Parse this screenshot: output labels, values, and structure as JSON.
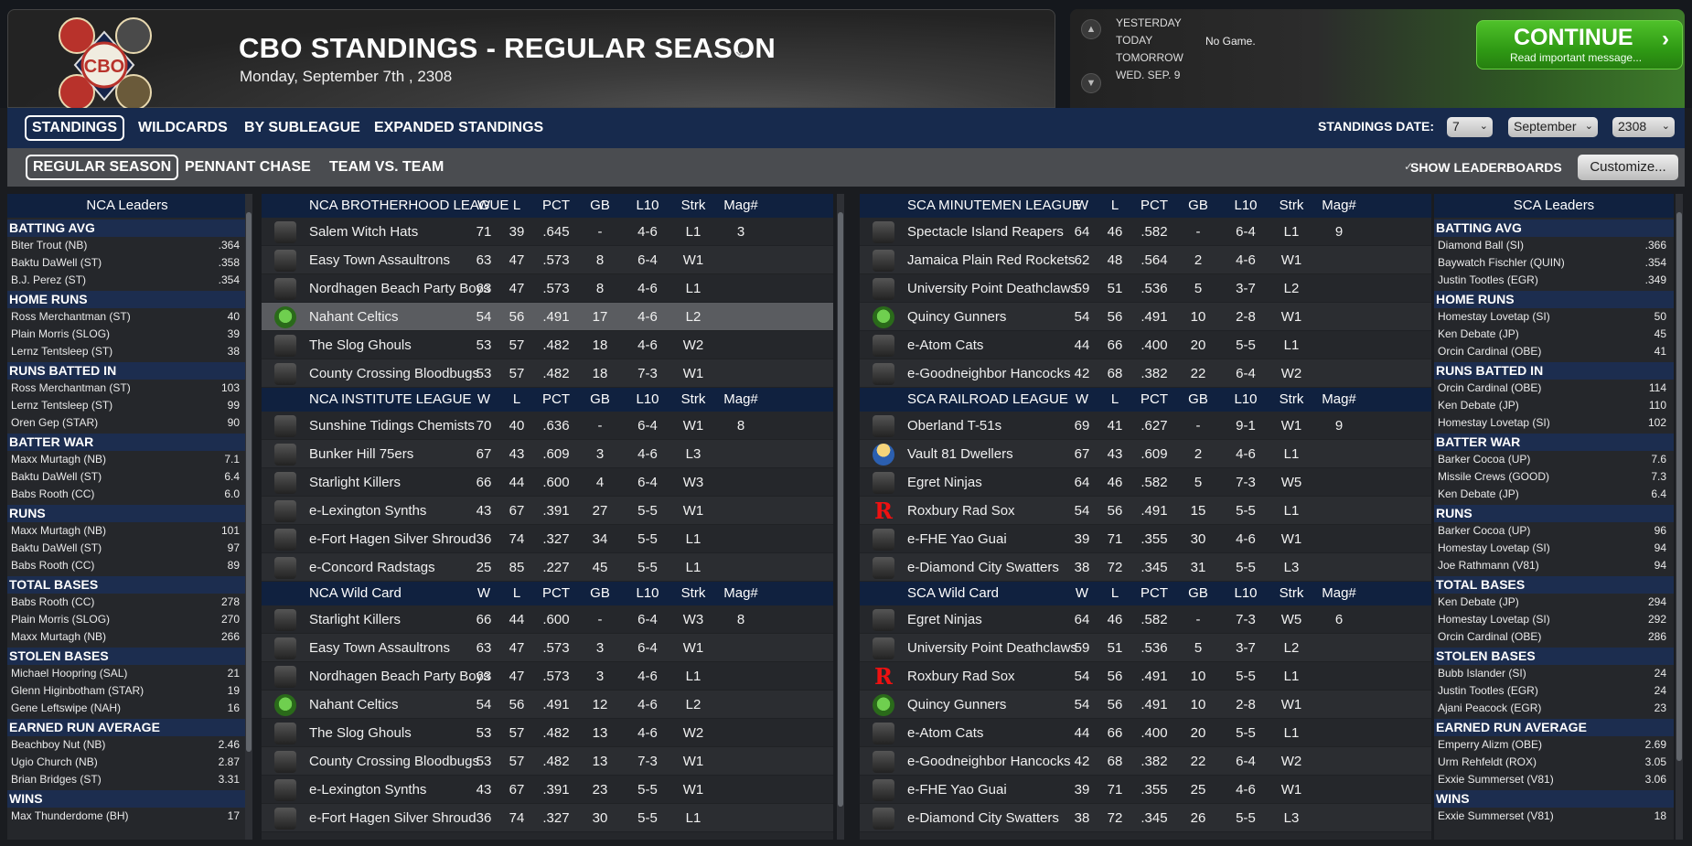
{
  "header": {
    "title": "CBO STANDINGS - REGULAR SEASON",
    "date": "Monday, September 7th , 2308",
    "logo_text": "CBO",
    "days": [
      "YESTERDAY",
      "TODAY",
      "TOMORROW",
      "WED. SEP. 9"
    ],
    "no_game": "No Game.",
    "continue_label": "CONTINUE",
    "continue_sub": "Read important message..."
  },
  "tabs1": [
    "STANDINGS",
    "WILDCARDS",
    "BY SUBLEAGUE",
    "EXPANDED STANDINGS"
  ],
  "tabs2": [
    "REGULAR SEASON",
    "PENNANT CHASE",
    "TEAM VS. TEAM"
  ],
  "standings_date": {
    "label": "STANDINGS DATE:",
    "day": "7",
    "month": "September",
    "year": "2308"
  },
  "show_leaderboards": "SHOW LEADERBOARDS",
  "customize": "Customize...",
  "columns": [
    "W",
    "L",
    "PCT",
    "GB",
    "L10",
    "Strk",
    "Mag#"
  ],
  "nca_leaders": {
    "title": "NCA Leaders",
    "categories": [
      {
        "name": "BATTING AVG",
        "rows": [
          [
            "Biter Trout (NB)",
            ".364"
          ],
          [
            "Baktu DaWell (ST)",
            ".358"
          ],
          [
            "B.J. Perez (ST)",
            ".354"
          ]
        ]
      },
      {
        "name": "HOME RUNS",
        "rows": [
          [
            "Ross Merchantman (ST)",
            "40"
          ],
          [
            "Plain Morris (SLOG)",
            "39"
          ],
          [
            "Lernz Tentsleep (ST)",
            "38"
          ]
        ]
      },
      {
        "name": "RUNS BATTED IN",
        "rows": [
          [
            "Ross Merchantman (ST)",
            "103"
          ],
          [
            "Lernz Tentsleep (ST)",
            "99"
          ],
          [
            "Oren Gep (STAR)",
            "90"
          ]
        ]
      },
      {
        "name": "BATTER WAR",
        "rows": [
          [
            "Maxx Murtagh (NB)",
            "7.1"
          ],
          [
            "Baktu DaWell (ST)",
            "6.4"
          ],
          [
            "Babs Rooth (CC)",
            "6.0"
          ]
        ]
      },
      {
        "name": "RUNS",
        "rows": [
          [
            "Maxx Murtagh (NB)",
            "101"
          ],
          [
            "Baktu DaWell (ST)",
            "97"
          ],
          [
            "Babs Rooth (CC)",
            "89"
          ]
        ]
      },
      {
        "name": "TOTAL BASES",
        "rows": [
          [
            "Babs Rooth (CC)",
            "278"
          ],
          [
            "Plain Morris (SLOG)",
            "270"
          ],
          [
            "Maxx Murtagh (NB)",
            "266"
          ]
        ]
      },
      {
        "name": "STOLEN BASES",
        "rows": [
          [
            "Michael Hoopring (SAL)",
            "21"
          ],
          [
            "Glenn Higinbotham (STAR)",
            "19"
          ],
          [
            "Gene Leftswipe (NAH)",
            "16"
          ]
        ]
      },
      {
        "name": "EARNED RUN AVERAGE",
        "rows": [
          [
            "Beachboy Nut (NB)",
            "2.46"
          ],
          [
            "Ugio Church (NB)",
            "2.87"
          ],
          [
            "Brian Bridges (ST)",
            "3.31"
          ]
        ]
      },
      {
        "name": "WINS",
        "rows": [
          [
            "Max Thunderdome (BH)",
            "17"
          ]
        ]
      }
    ]
  },
  "sca_leaders": {
    "title": "SCA Leaders",
    "categories": [
      {
        "name": "BATTING AVG",
        "rows": [
          [
            "Diamond Ball (SI)",
            ".366"
          ],
          [
            "Baywatch Fischler (QUIN)",
            ".354"
          ],
          [
            "Justin Tootles (EGR)",
            ".349"
          ]
        ]
      },
      {
        "name": "HOME RUNS",
        "rows": [
          [
            "Homestay Lovetap (SI)",
            "50"
          ],
          [
            "Ken Debate (JP)",
            "45"
          ],
          [
            "Orcin Cardinal (OBE)",
            "41"
          ]
        ]
      },
      {
        "name": "RUNS BATTED IN",
        "rows": [
          [
            "Orcin Cardinal (OBE)",
            "114"
          ],
          [
            "Ken Debate (JP)",
            "110"
          ],
          [
            "Homestay Lovetap (SI)",
            "102"
          ]
        ]
      },
      {
        "name": "BATTER WAR",
        "rows": [
          [
            "Barker Cocoa (UP)",
            "7.6"
          ],
          [
            "Missile Crews (GOOD)",
            "7.3"
          ],
          [
            "Ken Debate (JP)",
            "6.4"
          ]
        ]
      },
      {
        "name": "RUNS",
        "rows": [
          [
            "Barker Cocoa (UP)",
            "96"
          ],
          [
            "Homestay Lovetap (SI)",
            "94"
          ],
          [
            "Joe Rathmann (V81)",
            "94"
          ]
        ]
      },
      {
        "name": "TOTAL BASES",
        "rows": [
          [
            "Ken Debate (JP)",
            "294"
          ],
          [
            "Homestay Lovetap (SI)",
            "292"
          ],
          [
            "Orcin Cardinal (OBE)",
            "286"
          ]
        ]
      },
      {
        "name": "STOLEN BASES",
        "rows": [
          [
            "Bubb Islander (SI)",
            "24"
          ],
          [
            "Justin Tootles (EGR)",
            "24"
          ],
          [
            "Ajani Peacock (EGR)",
            "23"
          ]
        ]
      },
      {
        "name": "EARNED RUN AVERAGE",
        "rows": [
          [
            "Emperry Alizm (OBE)",
            "2.69"
          ],
          [
            "Urm Rehfeldt (ROX)",
            "3.05"
          ],
          [
            "Exxie Summerset (V81)",
            "3.06"
          ]
        ]
      },
      {
        "name": "WINS",
        "rows": [
          [
            "Exxie Summerset (V81)",
            "18"
          ]
        ]
      }
    ]
  },
  "nca_tables": [
    {
      "title": "NCA BROTHERHOOD LEAGUE",
      "teams": [
        [
          "Salem Witch Hats",
          "71",
          "39",
          ".645",
          "-",
          "4-6",
          "L1",
          "3"
        ],
        [
          "Easy Town Assaultrons",
          "63",
          "47",
          ".573",
          "8",
          "6-4",
          "W1",
          ""
        ],
        [
          "Nordhagen Beach Party Boys",
          "63",
          "47",
          ".573",
          "8",
          "4-6",
          "L1",
          ""
        ],
        [
          "Nahant Celtics",
          "54",
          "56",
          ".491",
          "17",
          "4-6",
          "L2",
          ""
        ],
        [
          "The Slog Ghouls",
          "53",
          "57",
          ".482",
          "18",
          "4-6",
          "W2",
          ""
        ],
        [
          "County Crossing Bloodbugs",
          "53",
          "57",
          ".482",
          "18",
          "7-3",
          "W1",
          ""
        ]
      ]
    },
    {
      "title": "NCA INSTITUTE LEAGUE",
      "teams": [
        [
          "Sunshine Tidings Chemists",
          "70",
          "40",
          ".636",
          "-",
          "6-4",
          "W1",
          "8"
        ],
        [
          "Bunker Hill 75ers",
          "67",
          "43",
          ".609",
          "3",
          "4-6",
          "L3",
          ""
        ],
        [
          "Starlight Killers",
          "66",
          "44",
          ".600",
          "4",
          "6-4",
          "W3",
          ""
        ],
        [
          "e-Lexington Synths",
          "43",
          "67",
          ".391",
          "27",
          "5-5",
          "W1",
          ""
        ],
        [
          "e-Fort Hagen Silver Shroud",
          "36",
          "74",
          ".327",
          "34",
          "5-5",
          "L1",
          ""
        ],
        [
          "e-Concord Radstags",
          "25",
          "85",
          ".227",
          "45",
          "5-5",
          "L1",
          ""
        ]
      ]
    },
    {
      "title": "NCA  Wild Card",
      "teams": [
        [
          "Starlight Killers",
          "66",
          "44",
          ".600",
          "-",
          "6-4",
          "W3",
          "8"
        ],
        [
          "Easy Town Assaultrons",
          "63",
          "47",
          ".573",
          "3",
          "6-4",
          "W1",
          ""
        ],
        [
          "Nordhagen Beach Party Boys",
          "63",
          "47",
          ".573",
          "3",
          "4-6",
          "L1",
          ""
        ],
        [
          "Nahant Celtics",
          "54",
          "56",
          ".491",
          "12",
          "4-6",
          "L2",
          ""
        ],
        [
          "The Slog Ghouls",
          "53",
          "57",
          ".482",
          "13",
          "4-6",
          "W2",
          ""
        ],
        [
          "County Crossing Bloodbugs",
          "53",
          "57",
          ".482",
          "13",
          "7-3",
          "W1",
          ""
        ],
        [
          "e-Lexington Synths",
          "43",
          "67",
          ".391",
          "23",
          "5-5",
          "W1",
          ""
        ],
        [
          "e-Fort Hagen Silver Shroud",
          "36",
          "74",
          ".327",
          "30",
          "5-5",
          "L1",
          ""
        ]
      ]
    }
  ],
  "sca_tables": [
    {
      "title": "SCA MINUTEMEN LEAGUE",
      "teams": [
        [
          "Spectacle Island Reapers",
          "64",
          "46",
          ".582",
          "-",
          "6-4",
          "L1",
          "9"
        ],
        [
          "Jamaica Plain Red Rockets",
          "62",
          "48",
          ".564",
          "2",
          "4-6",
          "W1",
          ""
        ],
        [
          "University Point Deathclaws",
          "59",
          "51",
          ".536",
          "5",
          "3-7",
          "L2",
          ""
        ],
        [
          "Quincy Gunners",
          "54",
          "56",
          ".491",
          "10",
          "2-8",
          "W1",
          ""
        ],
        [
          "e-Atom Cats",
          "44",
          "66",
          ".400",
          "20",
          "5-5",
          "L1",
          ""
        ],
        [
          "e-Goodneighbor Hancocks",
          "42",
          "68",
          ".382",
          "22",
          "6-4",
          "W2",
          ""
        ]
      ]
    },
    {
      "title": "SCA RAILROAD LEAGUE",
      "teams": [
        [
          "Oberland T-51s",
          "69",
          "41",
          ".627",
          "-",
          "9-1",
          "W1",
          "9"
        ],
        [
          "Vault 81 Dwellers",
          "67",
          "43",
          ".609",
          "2",
          "4-6",
          "L1",
          ""
        ],
        [
          "Egret Ninjas",
          "64",
          "46",
          ".582",
          "5",
          "7-3",
          "W5",
          ""
        ],
        [
          "Roxbury Rad Sox",
          "54",
          "56",
          ".491",
          "15",
          "5-5",
          "L1",
          ""
        ],
        [
          "e-FHE Yao Guai",
          "39",
          "71",
          ".355",
          "30",
          "4-6",
          "W1",
          ""
        ],
        [
          "e-Diamond City Swatters",
          "38",
          "72",
          ".345",
          "31",
          "5-5",
          "L3",
          ""
        ]
      ]
    },
    {
      "title": "SCA  Wild Card",
      "teams": [
        [
          "Egret Ninjas",
          "64",
          "46",
          ".582",
          "-",
          "7-3",
          "W5",
          "6"
        ],
        [
          "University Point Deathclaws",
          "59",
          "51",
          ".536",
          "5",
          "3-7",
          "L2",
          ""
        ],
        [
          "Roxbury Rad Sox",
          "54",
          "56",
          ".491",
          "10",
          "5-5",
          "L1",
          ""
        ],
        [
          "Quincy Gunners",
          "54",
          "56",
          ".491",
          "10",
          "2-8",
          "W1",
          ""
        ],
        [
          "e-Atom Cats",
          "44",
          "66",
          ".400",
          "20",
          "5-5",
          "L1",
          ""
        ],
        [
          "e-Goodneighbor Hancocks",
          "42",
          "68",
          ".382",
          "22",
          "6-4",
          "W2",
          ""
        ],
        [
          "e-FHE Yao Guai",
          "39",
          "71",
          ".355",
          "25",
          "4-6",
          "W1",
          ""
        ],
        [
          "e-Diamond City Swatters",
          "38",
          "72",
          ".345",
          "26",
          "5-5",
          "L3",
          ""
        ]
      ]
    }
  ],
  "selected_team": "Nahant Celtics",
  "colors": {
    "header_blue": "#10213f",
    "continue_green": "#3aa81b",
    "selected_row": "#5a5c60"
  }
}
